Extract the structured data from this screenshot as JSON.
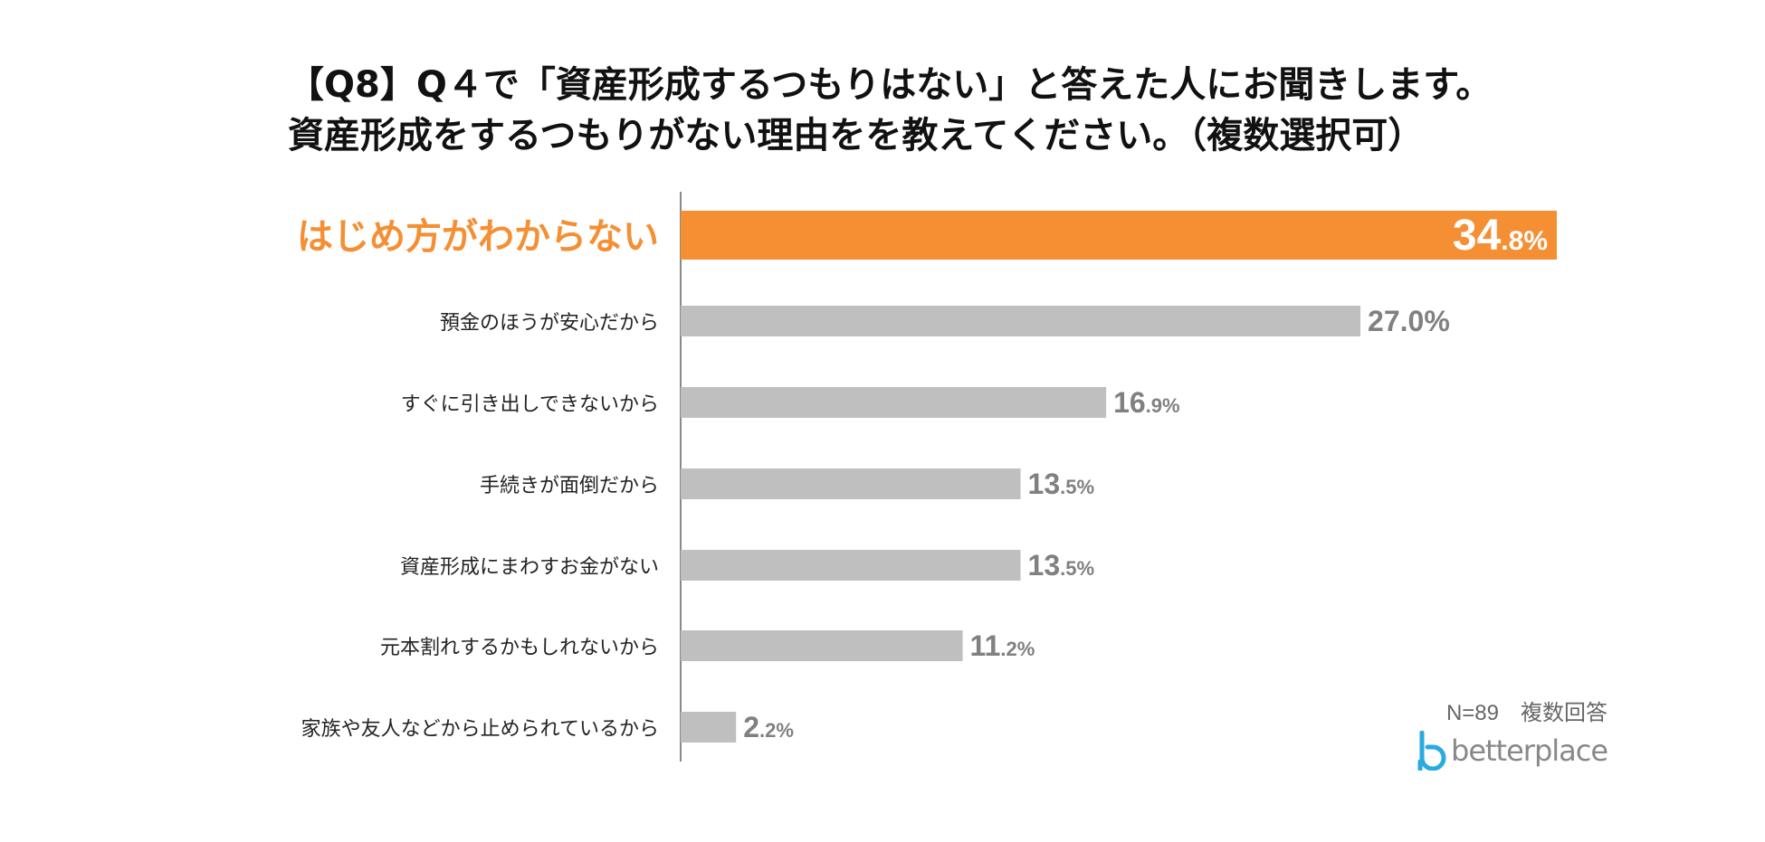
{
  "title": {
    "line1": "【Q8】Q４で「資産形成するつもりはない」と答えた人にお聞きします。",
    "line2": "資産形成をするつもりがない理由をを教えてください。（複数選択可）"
  },
  "chart_data": {
    "type": "bar",
    "orientation": "horizontal",
    "categories": [
      "はじめ方がわからない",
      "預金のほうが安心だから",
      "すぐに引き出しできないから",
      "手続きが面倒だから",
      "資産形成にまわすお金がない",
      "元本割れするかもしれないから",
      "家族や友人などから止められているから"
    ],
    "values": [
      34.8,
      27.0,
      16.9,
      13.5,
      13.5,
      11.2,
      2.2
    ],
    "value_labels": [
      {
        "int": "34",
        "dec": ".8%"
      },
      {
        "int": "27.0%",
        "dec": ""
      },
      {
        "int": "16",
        "dec": ".9%"
      },
      {
        "int": "13",
        "dec": ".5%"
      },
      {
        "int": "13",
        "dec": ".5%"
      },
      {
        "int": "11",
        "dec": ".2%"
      },
      {
        "int": "2",
        "dec": ".2%"
      }
    ],
    "highlight_index": 0,
    "xlim": [
      0,
      34.8
    ],
    "colors": {
      "highlight": "#F58F34",
      "default": "#BFBFBF",
      "highlight_label": "#FFFFFF",
      "value_label": "#808080",
      "category_label": "#222222",
      "axis": "#888888"
    }
  },
  "footnote": "N=89　複数回答",
  "logo": {
    "text": "betterplace",
    "icon": "betterplace-logo-icon",
    "color": "#29ABE2"
  }
}
